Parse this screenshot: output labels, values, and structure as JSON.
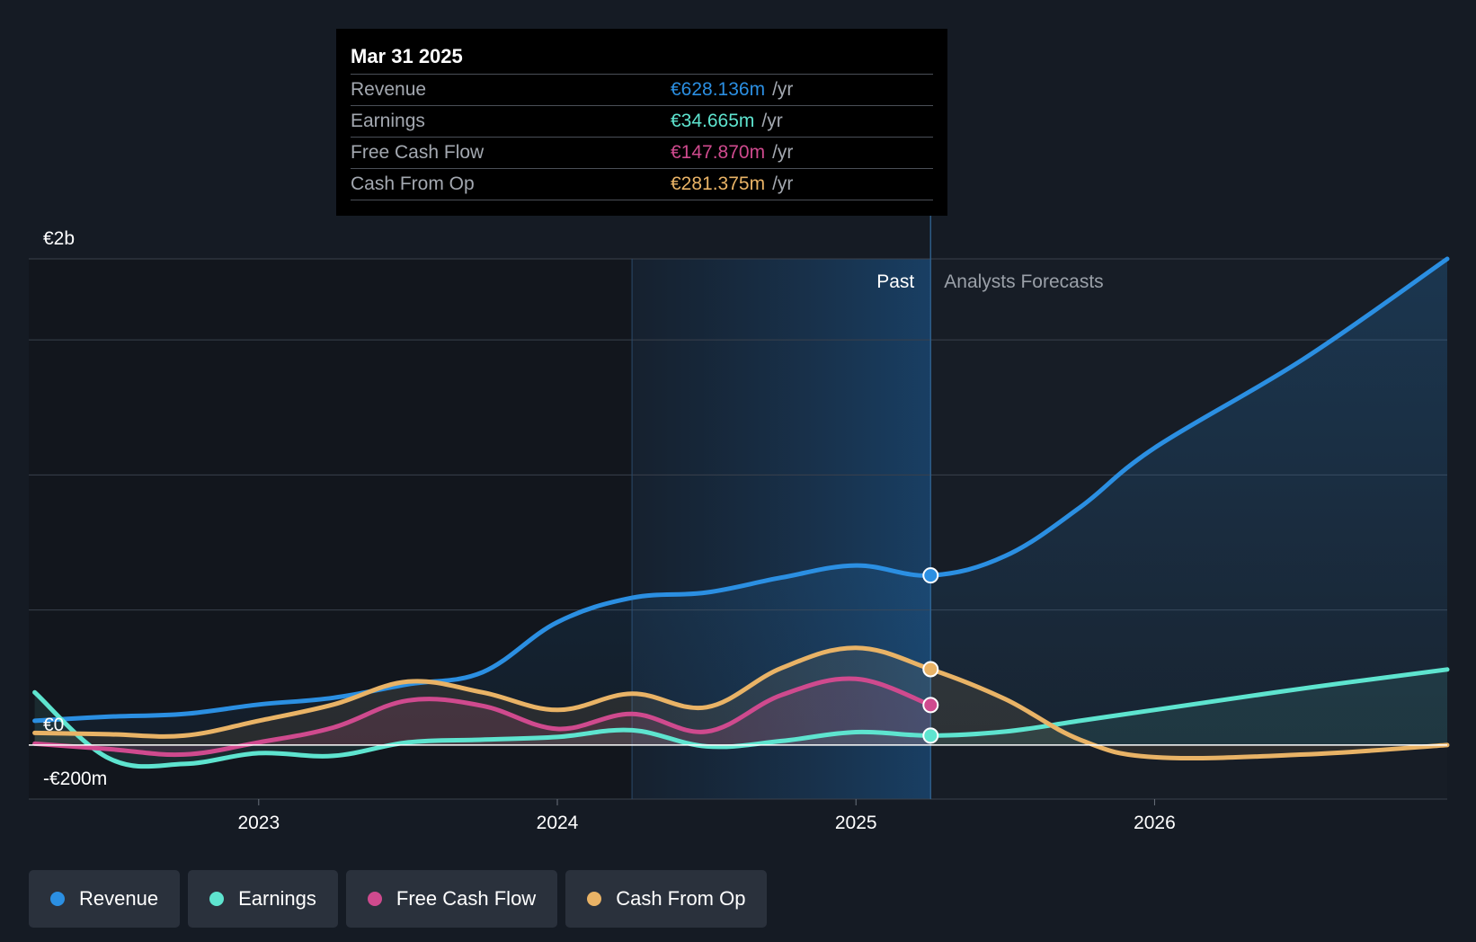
{
  "chart_data": {
    "type": "line",
    "title": "",
    "xlabel": "",
    "ylabel": "",
    "y_tick_labels": [
      "€2b",
      "€0",
      "-€200m"
    ],
    "x_tick_labels": [
      "2023",
      "2024",
      "2025",
      "2026"
    ],
    "ylim": [
      -200,
      1800
    ],
    "xlim": [
      2022.23,
      2026.98
    ],
    "past_label": "Past",
    "forecast_label": "Analysts Forecasts",
    "divider_x": 2025.25,
    "shade_start_x": 2024.25,
    "series": [
      {
        "name": "Revenue",
        "color": "#2b8fe2",
        "points": [
          [
            2022.25,
            90
          ],
          [
            2022.5,
            105
          ],
          [
            2022.75,
            115
          ],
          [
            2023.0,
            150
          ],
          [
            2023.25,
            175
          ],
          [
            2023.5,
            225
          ],
          [
            2023.75,
            270
          ],
          [
            2024.0,
            455
          ],
          [
            2024.25,
            545
          ],
          [
            2024.5,
            565
          ],
          [
            2024.75,
            620
          ],
          [
            2025.0,
            665
          ],
          [
            2025.25,
            628
          ],
          [
            2025.5,
            700
          ],
          [
            2025.75,
            880
          ],
          [
            2026.0,
            1100
          ],
          [
            2026.5,
            1430
          ],
          [
            2026.98,
            1800
          ]
        ]
      },
      {
        "name": "Earnings",
        "color": "#5ee4cf",
        "points": [
          [
            2022.25,
            195
          ],
          [
            2022.5,
            -50
          ],
          [
            2022.75,
            -70
          ],
          [
            2023.0,
            -30
          ],
          [
            2023.25,
            -40
          ],
          [
            2023.5,
            10
          ],
          [
            2023.75,
            20
          ],
          [
            2024.0,
            30
          ],
          [
            2024.25,
            55
          ],
          [
            2024.5,
            -5
          ],
          [
            2024.75,
            15
          ],
          [
            2025.0,
            48
          ],
          [
            2025.25,
            35
          ],
          [
            2025.5,
            50
          ],
          [
            2025.75,
            90
          ],
          [
            2026.0,
            130
          ],
          [
            2026.5,
            210
          ],
          [
            2026.98,
            280
          ]
        ]
      },
      {
        "name": "Free Cash Flow",
        "color": "#cf4a8e",
        "points": [
          [
            2022.25,
            5
          ],
          [
            2022.5,
            -15
          ],
          [
            2022.75,
            -35
          ],
          [
            2023.0,
            10
          ],
          [
            2023.25,
            65
          ],
          [
            2023.5,
            165
          ],
          [
            2023.75,
            145
          ],
          [
            2024.0,
            60
          ],
          [
            2024.25,
            115
          ],
          [
            2024.5,
            50
          ],
          [
            2024.75,
            185
          ],
          [
            2025.0,
            245
          ],
          [
            2025.25,
            148
          ]
        ]
      },
      {
        "name": "Cash From Op",
        "color": "#e9b366",
        "points": [
          [
            2022.25,
            45
          ],
          [
            2022.5,
            40
          ],
          [
            2022.75,
            35
          ],
          [
            2023.0,
            90
          ],
          [
            2023.25,
            150
          ],
          [
            2023.5,
            235
          ],
          [
            2023.75,
            195
          ],
          [
            2024.0,
            130
          ],
          [
            2024.25,
            190
          ],
          [
            2024.5,
            140
          ],
          [
            2024.75,
            285
          ],
          [
            2025.0,
            360
          ],
          [
            2025.25,
            281
          ],
          [
            2025.5,
            170
          ],
          [
            2025.75,
            20
          ],
          [
            2026.0,
            -45
          ],
          [
            2026.5,
            -35
          ],
          [
            2026.98,
            0
          ]
        ]
      }
    ],
    "tooltip": {
      "date": "Mar 31 2025",
      "rows": [
        {
          "label": "Revenue",
          "value": "€628.136m",
          "unit": "/yr",
          "color": "#2b8fe2"
        },
        {
          "label": "Earnings",
          "value": "€34.665m",
          "unit": "/yr",
          "color": "#5ee4cf"
        },
        {
          "label": "Free Cash Flow",
          "value": "€147.870m",
          "unit": "/yr",
          "color": "#cf4a8e"
        },
        {
          "label": "Cash From Op",
          "value": "€281.375m",
          "unit": "/yr",
          "color": "#e9b366"
        }
      ]
    }
  },
  "legend": [
    {
      "label": "Revenue",
      "color": "#2b8fe2"
    },
    {
      "label": "Earnings",
      "color": "#5ee4cf"
    },
    {
      "label": "Free Cash Flow",
      "color": "#cf4a8e"
    },
    {
      "label": "Cash From Op",
      "color": "#e9b366"
    }
  ]
}
